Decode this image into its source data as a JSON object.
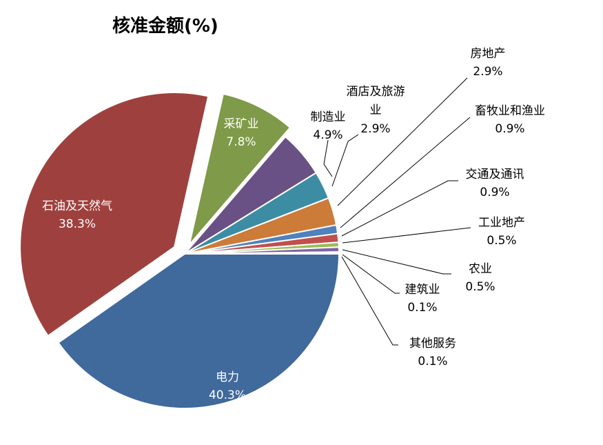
{
  "chart_data": {
    "type": "pie",
    "title": "核准金额(%)",
    "slices": [
      {
        "label": "电力",
        "value": 40.3,
        "value_label": "40.3%",
        "color": "#40699C"
      },
      {
        "label": "石油及天然气",
        "value": 38.3,
        "value_label": "38.3%",
        "color": "#9E413E"
      },
      {
        "label": "采矿业",
        "value": 7.8,
        "value_label": "7.8%",
        "color": "#7F9A48"
      },
      {
        "label": "制造业",
        "value": 4.9,
        "value_label": "4.9%",
        "color": "#695185"
      },
      {
        "label": "酒店及旅游业",
        "value": 2.9,
        "value_label": "2.9%",
        "color": "#3C8DA3"
      },
      {
        "label": "房地产",
        "value": 2.9,
        "value_label": "2.9%",
        "color": "#CC7B38"
      },
      {
        "label": "畜牧业和渔业",
        "value": 0.9,
        "value_label": "0.9%",
        "color": "#4F81BD"
      },
      {
        "label": "交通及通讯",
        "value": 0.9,
        "value_label": "0.9%",
        "color": "#C0504D"
      },
      {
        "label": "工业地产",
        "value": 0.5,
        "value_label": "0.5%",
        "color": "#9BBB59"
      },
      {
        "label": "农业",
        "value": 0.5,
        "value_label": "0.5%",
        "color": "#8064A2"
      },
      {
        "label": "建筑业",
        "value": 0.1,
        "value_label": "0.1%",
        "color": "#4BACC6"
      },
      {
        "label": "其他服务",
        "value": 0.1,
        "value_label": "0.1%",
        "color": "#F79646"
      }
    ],
    "exploded": [
      "石油及天然气",
      "采矿业"
    ]
  }
}
